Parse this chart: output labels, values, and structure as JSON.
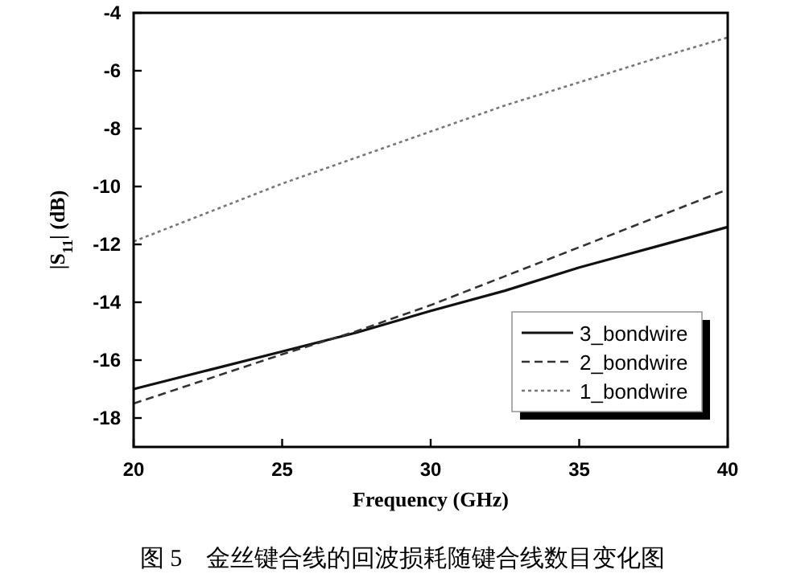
{
  "chart_data": {
    "type": "line",
    "title": "图 5　金丝键合线的回波损耗随键合线数目变化图",
    "xlabel": "Frequency (GHz)",
    "ylabel": "|S$_{11}$| (dB)",
    "x": [
      20,
      22.5,
      25,
      27.5,
      30,
      32.5,
      35,
      37.5,
      40
    ],
    "series": [
      {
        "name": "3_bondwire",
        "color": "#111111",
        "line_style": "solid",
        "values": [
          -17.0,
          -16.35,
          -15.7,
          -15.05,
          -14.3,
          -13.6,
          -12.8,
          -12.1,
          -11.4
        ]
      },
      {
        "name": "2_bondwire",
        "color": "#333333",
        "line_style": "dashed",
        "values": [
          -17.5,
          -16.65,
          -15.8,
          -15.0,
          -14.1,
          -13.1,
          -12.1,
          -11.1,
          -10.1
        ]
      },
      {
        "name": "1_bondwire",
        "color": "#777777",
        "line_style": "dotted",
        "values": [
          -11.9,
          -10.9,
          -9.9,
          -9.0,
          -8.1,
          -7.2,
          -6.4,
          -5.6,
          -4.85
        ]
      }
    ],
    "xlim": [
      20,
      40
    ],
    "xticks": [
      20,
      25,
      30,
      35,
      40
    ],
    "ylim": [
      -19,
      -4
    ],
    "yticks": [
      -18,
      -16,
      -14,
      -12,
      -10,
      -8,
      -6,
      -4
    ],
    "grid": false,
    "legend": "bottom right",
    "marker": "none"
  }
}
